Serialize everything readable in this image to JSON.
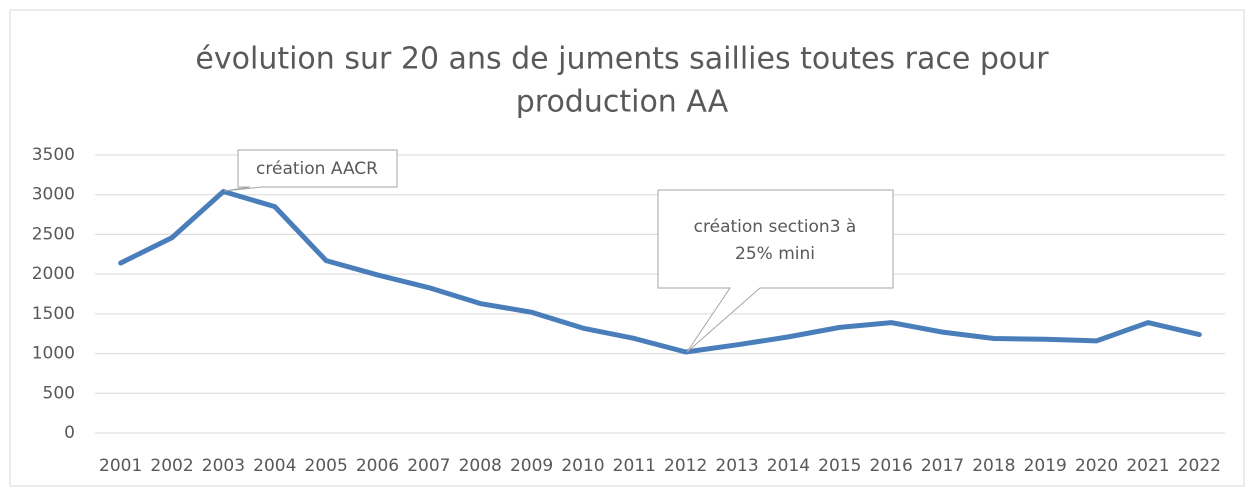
{
  "chart_data": {
    "type": "line",
    "title": [
      "évolution sur 20 ans de juments saillies toutes race pour",
      "production AA"
    ],
    "categories": [
      "2001",
      "2002",
      "2003",
      "2004",
      "2005",
      "2006",
      "2007",
      "2008",
      "2009",
      "2010",
      "2011",
      "2012",
      "2013",
      "2014",
      "2015",
      "2016",
      "2017",
      "2018",
      "2019",
      "2020",
      "2021",
      "2022"
    ],
    "series": [
      {
        "color": "#4a7ebb",
        "values": [
          2140,
          2460,
          3040,
          2850,
          2170,
          1990,
          1830,
          1630,
          1520,
          1320,
          1190,
          1020,
          1110,
          1210,
          1330,
          1390,
          1270,
          1190,
          1180,
          1160,
          1390,
          1240
        ]
      }
    ],
    "ylim": [
      0,
      3500
    ],
    "yticks": [
      0,
      500,
      1000,
      1500,
      2000,
      2500,
      3000,
      3500
    ],
    "grid": true,
    "annotations": [
      {
        "lines": [
          "création AACR"
        ]
      },
      {
        "lines": [
          "création section3 à",
          "25% mini"
        ]
      }
    ]
  }
}
